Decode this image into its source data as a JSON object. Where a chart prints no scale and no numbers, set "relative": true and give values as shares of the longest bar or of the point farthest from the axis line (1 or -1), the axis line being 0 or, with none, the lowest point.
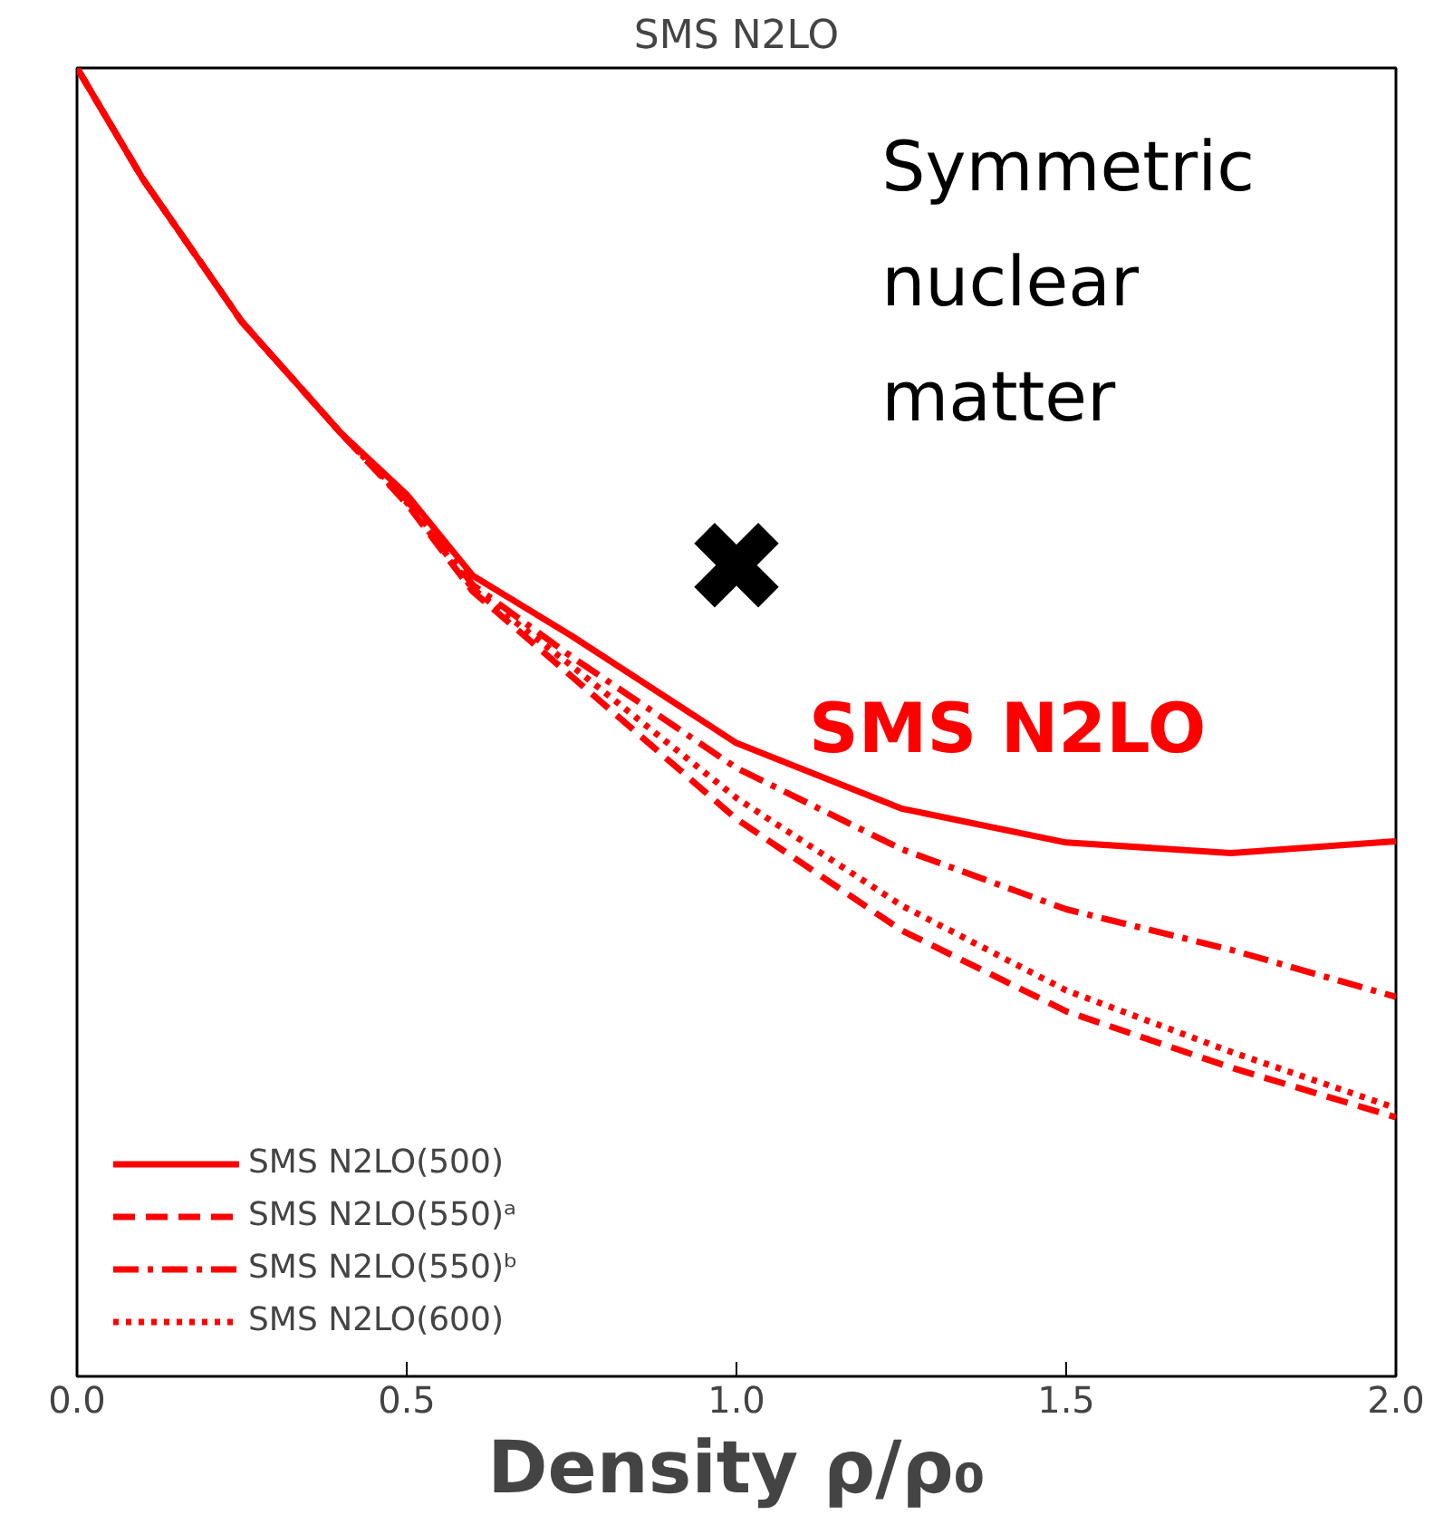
{
  "chart_data": {
    "type": "line",
    "title": "SMS N2LO",
    "xlabel": "Density ρ/ρ₀",
    "relative": true,
    "xlim": [
      0,
      2
    ],
    "xticks": [
      {
        "value": 0,
        "label": "0.0"
      },
      {
        "value": 0.5,
        "label": "0.5"
      },
      {
        "value": 1,
        "label": "1.0"
      },
      {
        "value": 1.5,
        "label": "1.5"
      },
      {
        "value": 2,
        "label": "2.0"
      }
    ],
    "x": [
      0,
      0.1,
      0.25,
      0.4,
      0.5,
      0.6,
      0.75,
      1.0,
      1.25,
      1.5,
      1.75,
      2.0
    ],
    "series": [
      {
        "name": "SMS N2LO(500)",
        "color": "#ff0000",
        "line_style": "solid",
        "values": [
          1.0,
          0.915,
          0.806,
          0.721,
          0.674,
          0.612,
          0.566,
          0.484,
          0.434,
          0.408,
          0.4,
          0.409
        ]
      },
      {
        "name": "SMS N2LO(550)ᵃ",
        "color": "#ff0000",
        "line_style": "dashed",
        "values": [
          1.0,
          0.915,
          0.806,
          0.721,
          0.667,
          0.6,
          0.535,
          0.426,
          0.341,
          0.279,
          0.236,
          0.198
        ]
      },
      {
        "name": "SMS N2LO(550)ᵇ",
        "color": "#ff0000",
        "line_style": "dashdot",
        "values": [
          1.0,
          0.915,
          0.806,
          0.721,
          0.67,
          0.605,
          0.55,
          0.465,
          0.403,
          0.357,
          0.326,
          0.29
        ]
      },
      {
        "name": "SMS N2LO(600)",
        "color": "#ff0000",
        "line_style": "dotted",
        "values": [
          1.0,
          0.915,
          0.806,
          0.721,
          0.668,
          0.602,
          0.543,
          0.442,
          0.36,
          0.295,
          0.248,
          0.205
        ]
      },
      {
        "type": "scatter",
        "marker": "cross",
        "color": "#000000",
        "x": [
          1.0
        ],
        "values": [
          0.62
        ]
      }
    ],
    "annotations": [
      "Symmetric nuclear matter",
      "SMS N2LO"
    ],
    "legend": "bottom left",
    "grid": false,
    "marker": "none"
  }
}
